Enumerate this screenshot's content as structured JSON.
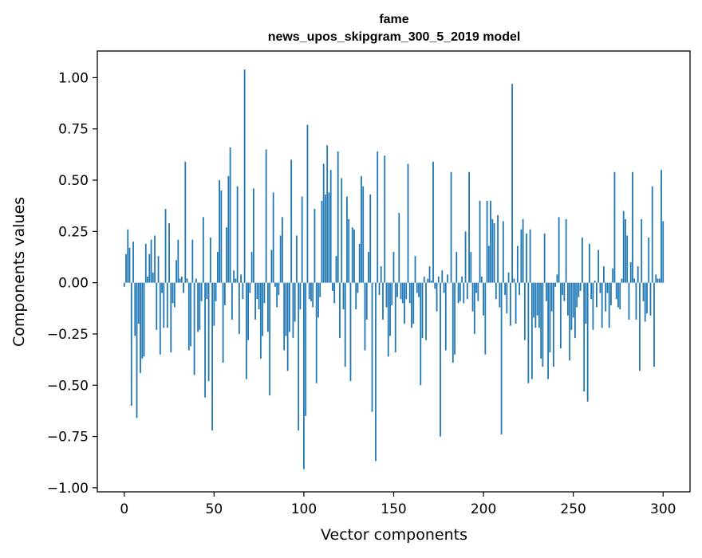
{
  "chart_data": {
    "type": "bar",
    "title_line1": "fame",
    "title_line2": "news_upos_skipgram_300_5_2019 model",
    "xlabel": "Vector components",
    "ylabel": "Components values",
    "xlim": [
      -15,
      315
    ],
    "ylim": [
      -1.02,
      1.13
    ],
    "xticks": [
      0,
      50,
      100,
      150,
      200,
      250,
      300
    ],
    "xtick_labels": [
      "0",
      "50",
      "100",
      "150",
      "200",
      "250",
      "300"
    ],
    "yticks": [
      -1.0,
      -0.75,
      -0.5,
      -0.25,
      0.0,
      0.25,
      0.5,
      0.75,
      1.0
    ],
    "ytick_labels": [
      "−1.00",
      "−0.75",
      "−0.50",
      "−0.25",
      "0.00",
      "0.25",
      "0.50",
      "0.75",
      "1.00"
    ],
    "bar_color": "#1f77b4",
    "values": [
      -0.02,
      0.14,
      0.26,
      0.17,
      -0.6,
      0.2,
      -0.26,
      -0.66,
      -0.2,
      -0.44,
      -0.37,
      -0.36,
      0.19,
      0.03,
      0.14,
      0.21,
      0.05,
      0.23,
      -0.23,
      0.13,
      -0.35,
      -0.05,
      -0.22,
      0.36,
      -0.22,
      0.29,
      -0.34,
      -0.1,
      -0.12,
      0.11,
      0.21,
      0.02,
      0.03,
      -0.05,
      0.59,
      0.02,
      -0.33,
      -0.31,
      0.21,
      -0.45,
      0.02,
      -0.24,
      -0.23,
      -0.09,
      0.32,
      -0.56,
      -0.08,
      -0.48,
      0.22,
      -0.72,
      -0.21,
      -0.09,
      0.15,
      0.5,
      0.45,
      -0.39,
      -0.11,
      0.27,
      0.52,
      0.66,
      -0.18,
      0.06,
      0.02,
      0.47,
      -0.25,
      0.04,
      -0.08,
      1.04,
      -0.47,
      -0.28,
      -0.05,
      0.15,
      0.46,
      -0.18,
      -0.08,
      -0.13,
      -0.37,
      -0.26,
      -0.1,
      0.65,
      -0.24,
      -0.55,
      0.16,
      0.44,
      -0.02,
      -0.12,
      -0.06,
      0.23,
      0.32,
      -0.33,
      -0.26,
      -0.43,
      -0.24,
      0.6,
      -0.27,
      -0.19,
      0.23,
      -0.72,
      -0.13,
      0.42,
      -0.91,
      -0.65,
      0.77,
      -0.08,
      -0.09,
      -0.12,
      0.36,
      -0.49,
      -0.17,
      -0.07,
      0.4,
      0.58,
      0.43,
      0.67,
      0.44,
      0.55,
      -0.04,
      -0.1,
      0.13,
      0.64,
      -0.27,
      0.51,
      -0.13,
      -0.41,
      0.42,
      0.31,
      -0.48,
      0.27,
      0.26,
      -0.13,
      -0.05,
      0.19,
      0.52,
      0.47,
      -0.33,
      -0.18,
      0.15,
      0.43,
      -0.63,
      0.0,
      -0.87,
      0.64,
      -0.06,
      0.08,
      -0.18,
      0.62,
      -0.12,
      -0.36,
      -0.26,
      -0.11,
      0.15,
      -0.34,
      -0.07,
      0.34,
      -0.08,
      -0.1,
      -0.2,
      -0.08,
      0.58,
      -0.1,
      -0.22,
      -0.2,
      0.13,
      -0.05,
      -0.07,
      -0.5,
      -0.27,
      0.03,
      -0.28,
      0.02,
      0.08,
      0.01,
      0.59,
      -0.03,
      -0.14,
      0.03,
      -0.75,
      0.06,
      -0.05,
      -0.33,
      0.04,
      0.0,
      0.54,
      -0.39,
      -0.35,
      0.15,
      -0.1,
      -0.09,
      0.03,
      -0.1,
      0.25,
      -0.08,
      0.54,
      0.15,
      -0.14,
      -0.25,
      -0.05,
      -0.09,
      0.4,
      0.03,
      -0.16,
      -0.35,
      0.4,
      0.18,
      0.4,
      0.31,
      0.29,
      -0.08,
      0.33,
      -0.12,
      -0.74,
      0.3,
      -0.06,
      -0.15,
      0.05,
      -0.21,
      0.97,
      0.02,
      -0.2,
      0.18,
      -0.06,
      0.26,
      0.31,
      -0.28,
      0.24,
      -0.49,
      0.26,
      -0.47,
      -0.17,
      -0.22,
      -0.16,
      -0.22,
      -0.37,
      -0.41,
      0.24,
      -0.09,
      -0.47,
      -0.34,
      -0.14,
      -0.41,
      -0.02,
      0.04,
      0.32,
      -0.32,
      -0.06,
      -0.09,
      0.31,
      -0.16,
      -0.38,
      -0.23,
      -0.17,
      -0.27,
      -0.12,
      -0.07,
      -0.04,
      0.22,
      -0.53,
      -0.2,
      -0.58,
      0.19,
      -0.08,
      -0.23,
      0.01,
      -0.12,
      0.16,
      -0.05,
      -0.22,
      0.08,
      -0.14,
      -0.05,
      -0.22,
      -0.11,
      0.07,
      0.54,
      -0.08,
      -0.12,
      -0.13,
      0.02,
      0.35,
      0.31,
      0.23,
      -0.18,
      0.1,
      0.54,
      0.02,
      -0.18,
      0.08,
      -0.43,
      0.31,
      -0.09,
      -0.19,
      -0.15,
      0.22,
      -0.16,
      0.47,
      -0.41,
      0.04,
      0.02,
      0.02,
      0.55,
      0.3
    ]
  }
}
